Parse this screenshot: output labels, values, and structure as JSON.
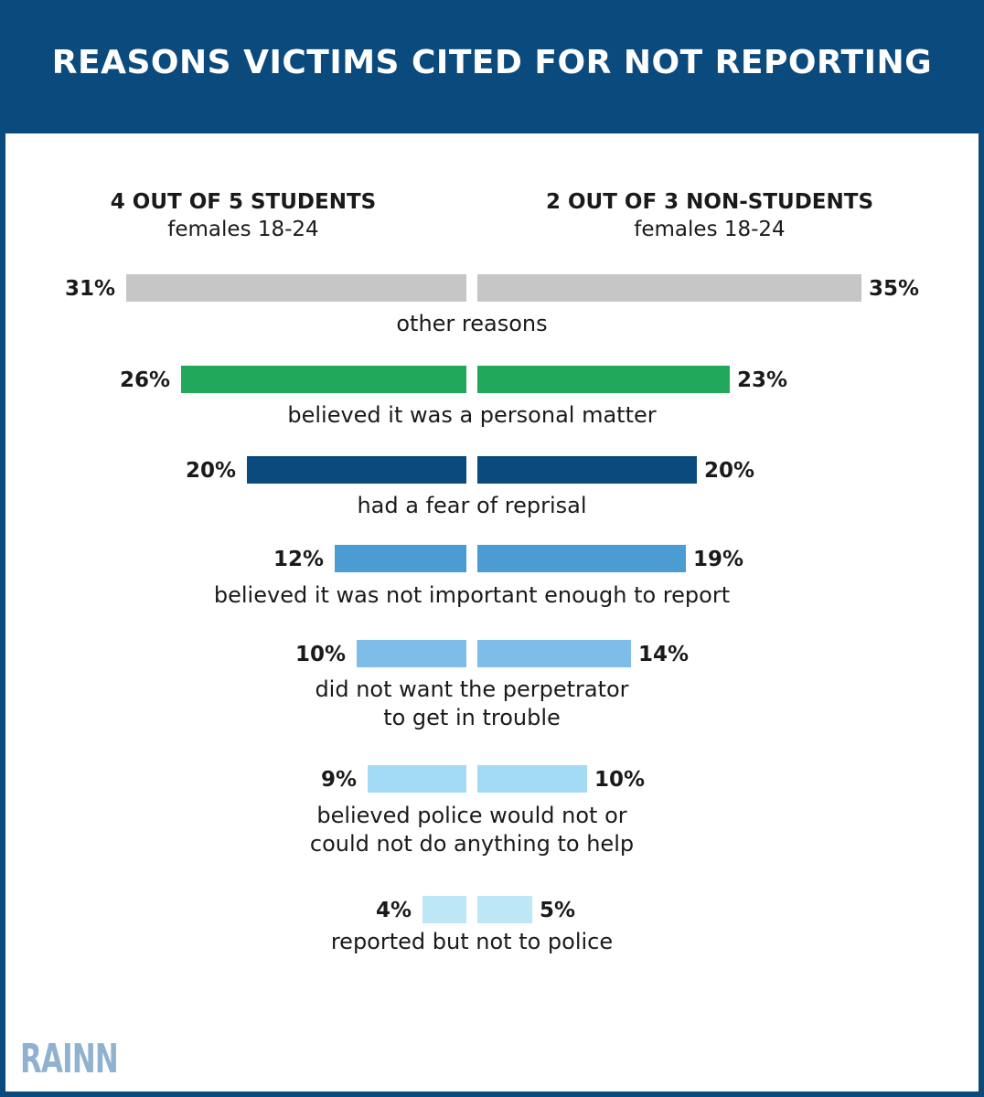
{
  "header": {
    "title": "REASONS VICTIMS CITED FOR NOT REPORTING"
  },
  "groups": {
    "left": {
      "heading": "4 OUT OF 5 STUDENTS",
      "sub": "females 18-24"
    },
    "right": {
      "heading": "2 OUT OF 3 NON-STUDENTS",
      "sub": "females 18-24"
    }
  },
  "chart_data": {
    "type": "bar",
    "categories": [
      [
        "other reasons"
      ],
      [
        "believed it was a personal matter"
      ],
      [
        "had a fear of reprisal"
      ],
      [
        "believed it was not important enough to report"
      ],
      [
        "did not want the perpetrator",
        "to get in trouble"
      ],
      [
        "believed police would not or",
        "could not do anything to help"
      ],
      [
        "reported but not to police"
      ]
    ],
    "series": [
      {
        "name": "4 OUT OF 5 STUDENTS",
        "values": [
          31,
          26,
          20,
          12,
          10,
          9,
          4
        ],
        "labels": [
          "31%",
          "26%",
          "20%",
          "12%",
          "10%",
          "9%",
          "4%"
        ]
      },
      {
        "name": "2 OUT OF 3 NON-STUDENTS",
        "values": [
          35,
          23,
          20,
          19,
          14,
          10,
          5
        ],
        "labels": [
          "35%",
          "23%",
          "20%",
          "19%",
          "14%",
          "10%",
          "5%"
        ]
      }
    ],
    "colors": [
      "#c6c6c6",
      "#22a85a",
      "#0b4a7c",
      "#4a9cd3",
      "#7dbde8",
      "#a3dbf5",
      "#bde6f7"
    ]
  },
  "logo": {
    "text": "RAINN",
    "color": "#8fb2d0"
  }
}
